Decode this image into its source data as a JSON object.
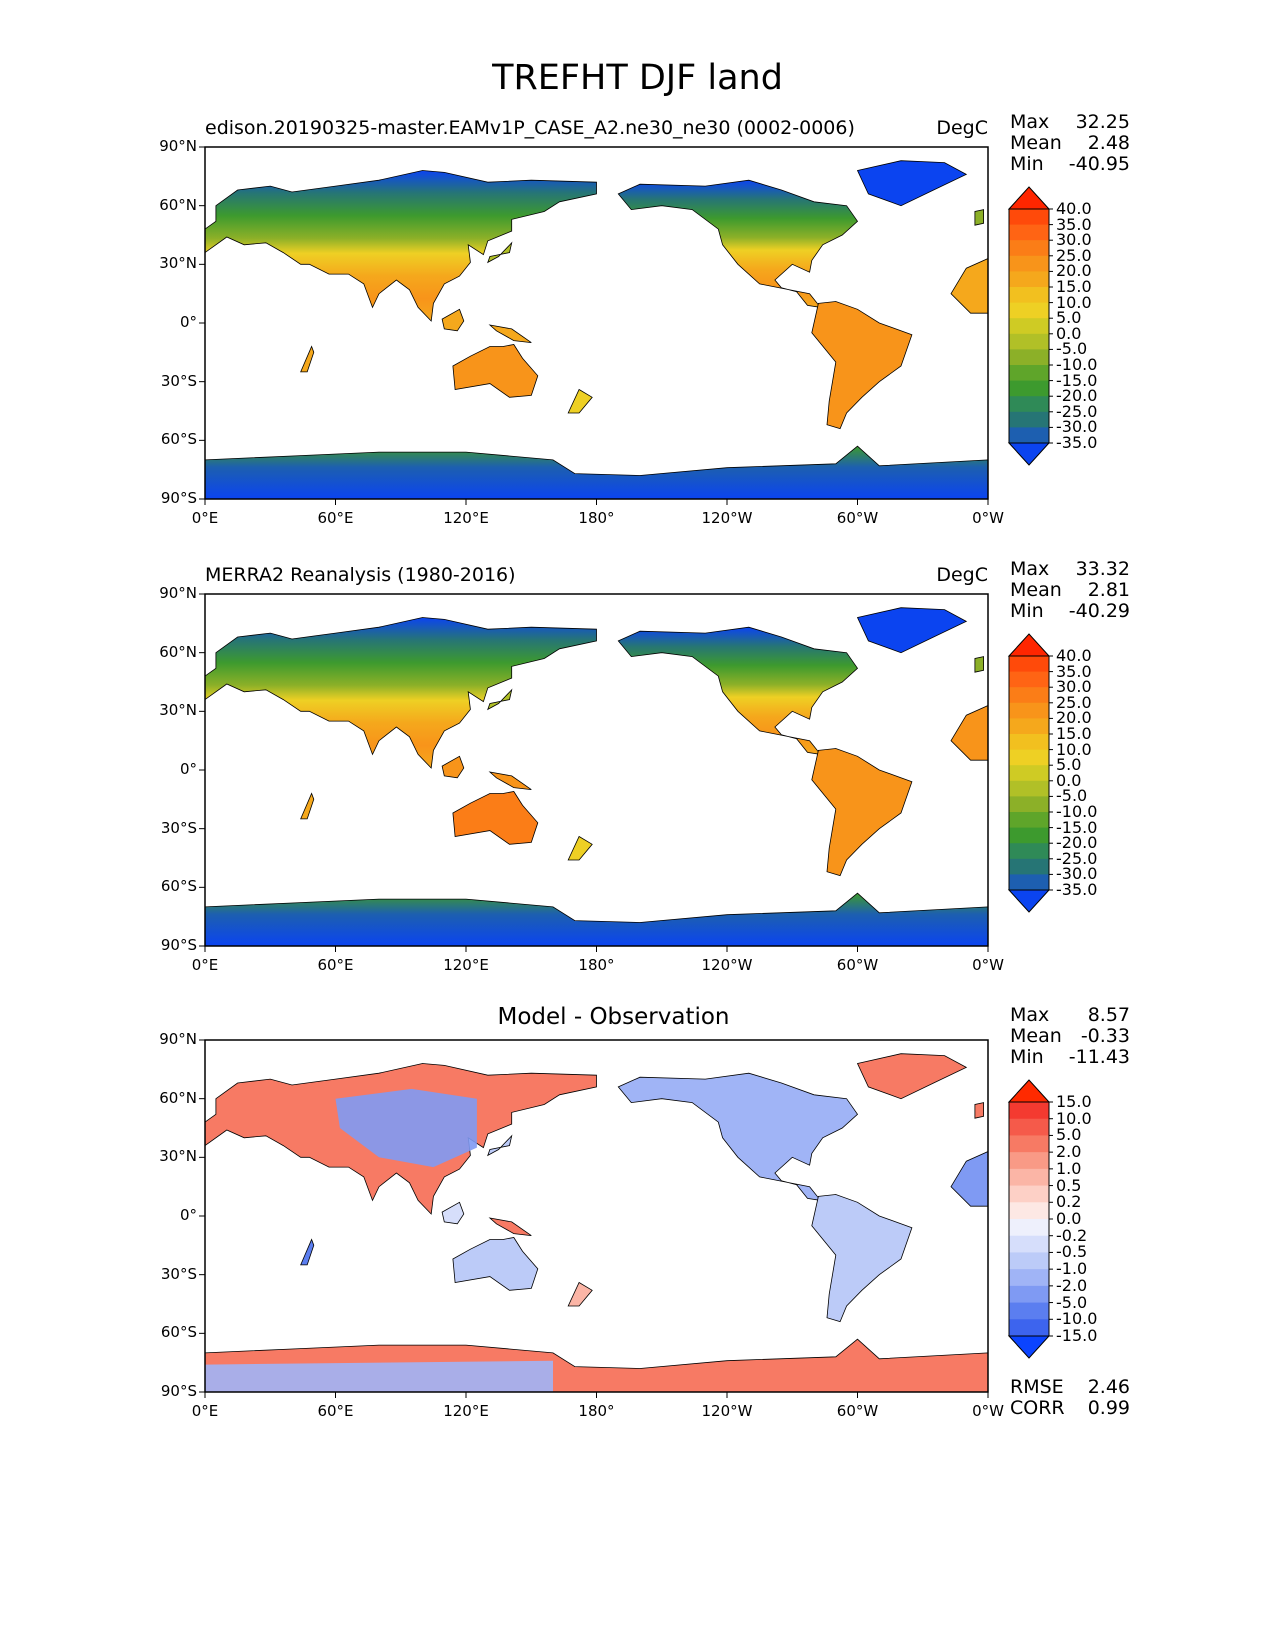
{
  "figure": {
    "title": "TREFHT DJF land"
  },
  "axes": {
    "lat_ticks": [
      "90°N",
      "60°N",
      "30°N",
      "0°",
      "30°S",
      "60°S",
      "90°S"
    ],
    "lon_ticks": [
      "0°E",
      "60°E",
      "120°E",
      "180°",
      "120°W",
      "60°W",
      "0°W"
    ]
  },
  "panels": [
    {
      "id": "model",
      "title": "edison.20190325-master.EAMv1P_CASE_A2.ne30_ne30 (0002-0006)",
      "units": "DegC",
      "stats": [
        {
          "label": "Max",
          "value": "32.25"
        },
        {
          "label": "Mean",
          "value": "2.48"
        },
        {
          "label": "Min",
          "value": "-40.95"
        }
      ],
      "colorbar": {
        "labels": [
          "40.0",
          "35.0",
          "30.0",
          "25.0",
          "20.0",
          "15.0",
          "10.0",
          "5.0",
          "0.0",
          "-5.0",
          "-10.0",
          "-15.0",
          "-20.0",
          "-25.0",
          "-30.0",
          "-35.0"
        ],
        "colors": [
          "#ff2600",
          "#ff4a0a",
          "#ff6414",
          "#fb7d17",
          "#f8941a",
          "#f5a81c",
          "#f2c01f",
          "#eed024",
          "#cfcb24",
          "#b1c027",
          "#8cb028",
          "#5fa52a",
          "#3d9a2e",
          "#2f8a57",
          "#267575",
          "#1d5fb0",
          "#0b44f0"
        ]
      }
    },
    {
      "id": "obs",
      "title": "MERRA2 Reanalysis (1980-2016)",
      "units": "DegC",
      "stats": [
        {
          "label": "Max",
          "value": "33.32"
        },
        {
          "label": "Mean",
          "value": "2.81"
        },
        {
          "label": "Min",
          "value": "-40.29"
        }
      ],
      "colorbar": {
        "labels": [
          "40.0",
          "35.0",
          "30.0",
          "25.0",
          "20.0",
          "15.0",
          "10.0",
          "5.0",
          "0.0",
          "-5.0",
          "-10.0",
          "-15.0",
          "-20.0",
          "-25.0",
          "-30.0",
          "-35.0"
        ],
        "colors": [
          "#ff2600",
          "#ff4a0a",
          "#ff6414",
          "#fb7d17",
          "#f8941a",
          "#f5a81c",
          "#f2c01f",
          "#eed024",
          "#cfcb24",
          "#b1c027",
          "#8cb028",
          "#5fa52a",
          "#3d9a2e",
          "#2f8a57",
          "#267575",
          "#1d5fb0",
          "#0b44f0"
        ]
      }
    },
    {
      "id": "diff",
      "title": "Model - Observation",
      "units": "",
      "stats": [
        {
          "label": "Max",
          "value": "8.57"
        },
        {
          "label": "Mean",
          "value": "-0.33"
        },
        {
          "label": "Min",
          "value": "-11.43"
        }
      ],
      "extra_stats": [
        {
          "label": "RMSE",
          "value": "2.46"
        },
        {
          "label": "CORR",
          "value": "0.99"
        }
      ],
      "colorbar": {
        "labels": [
          "15.0",
          "10.0",
          "5.0",
          "2.0",
          "1.0",
          "0.5",
          "0.2",
          "0.0",
          "-0.2",
          "-0.5",
          "-1.0",
          "-2.0",
          "-5.0",
          "-10.0",
          "-15.0"
        ],
        "colors": [
          "#ff2a00",
          "#f43a30",
          "#f55a4a",
          "#f77a64",
          "#f99a86",
          "#fbb5a6",
          "#fdd0c6",
          "#fde8e4",
          "#eef0fc",
          "#d6defb",
          "#bccbf8",
          "#a0b4f6",
          "#7f9af3",
          "#5b7ef0",
          "#3d64ee",
          "#0b44ff"
        ]
      }
    }
  ],
  "colors": {
    "ocean": "#ffffff",
    "coastline": "#000000"
  }
}
